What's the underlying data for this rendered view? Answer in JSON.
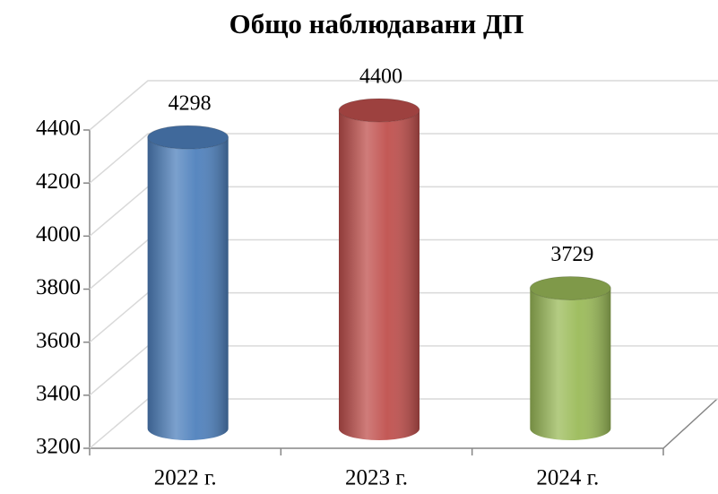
{
  "chart_data": {
    "type": "bar3d",
    "title": "Общо наблюдавани ДП",
    "categories": [
      "2022 г.",
      "2023 г.",
      "2024 г."
    ],
    "values": [
      4298,
      4400,
      3729
    ],
    "colors": [
      "#4f81bd",
      "#c0504d",
      "#9bbb59"
    ],
    "ylim": [
      3200,
      4400
    ],
    "yticks": [
      3200,
      3400,
      3600,
      3800,
      4000,
      4200,
      4400
    ],
    "grid": true
  }
}
